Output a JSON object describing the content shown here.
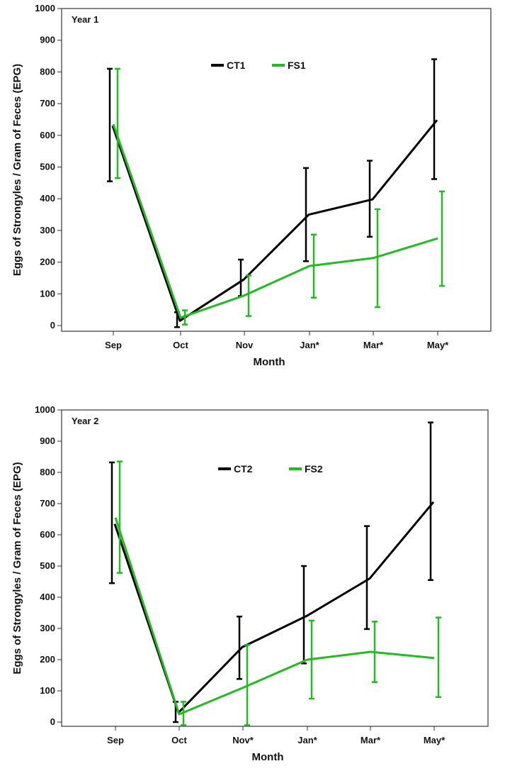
{
  "chart_data": [
    {
      "type": "line",
      "panel_label": "Year 1",
      "xlabel": "Month",
      "ylabel": "Eggs of Strongyles / Gram of Feces (EPG)",
      "ylim": [
        0,
        1000
      ],
      "yticks": [
        "0",
        "100",
        "200",
        "300",
        "400",
        "500",
        "600",
        "700",
        "800",
        "900",
        "1000"
      ],
      "categories": [
        "Sep",
        "Oct",
        "Nov",
        "Jan*",
        "Mar*",
        "May*"
      ],
      "legend_position": "top-center",
      "series": [
        {
          "name": "CT1",
          "color": "#000000",
          "values": [
            630,
            15,
            145,
            350,
            398,
            648
          ],
          "lower": [
            455,
            -5,
            93,
            203,
            280,
            462
          ],
          "upper": [
            810,
            42,
            208,
            497,
            520,
            840
          ]
        },
        {
          "name": "FS1",
          "color": "#22bb22",
          "values": [
            635,
            25,
            95,
            188,
            213,
            275
          ],
          "lower": [
            465,
            3,
            30,
            88,
            58,
            125
          ],
          "upper": [
            810,
            48,
            158,
            287,
            367,
            423
          ]
        }
      ]
    },
    {
      "type": "line",
      "panel_label": "Year 2",
      "xlabel": "Month",
      "ylabel": "Eggs of Strongyles / Gram of Feces (EPG)",
      "ylim": [
        0,
        1000
      ],
      "yticks": [
        "0",
        "100",
        "200",
        "300",
        "400",
        "500",
        "600",
        "700",
        "800",
        "900",
        "1000"
      ],
      "categories": [
        "Sep",
        "Oct",
        "Nov*",
        "Jan*",
        "Mar*",
        "May*"
      ],
      "legend_position": "top-center",
      "series": [
        {
          "name": "CT2",
          "color": "#000000",
          "values": [
            635,
            30,
            240,
            340,
            460,
            705
          ],
          "lower": [
            445,
            0,
            138,
            188,
            298,
            455
          ],
          "upper": [
            832,
            65,
            338,
            500,
            628,
            960
          ]
        },
        {
          "name": "FS2",
          "color": "#22bb22",
          "values": [
            655,
            25,
            110,
            200,
            225,
            205
          ],
          "lower": [
            478,
            -10,
            -10,
            75,
            128,
            80
          ],
          "upper": [
            835,
            65,
            247,
            325,
            322,
            335
          ]
        }
      ]
    }
  ]
}
